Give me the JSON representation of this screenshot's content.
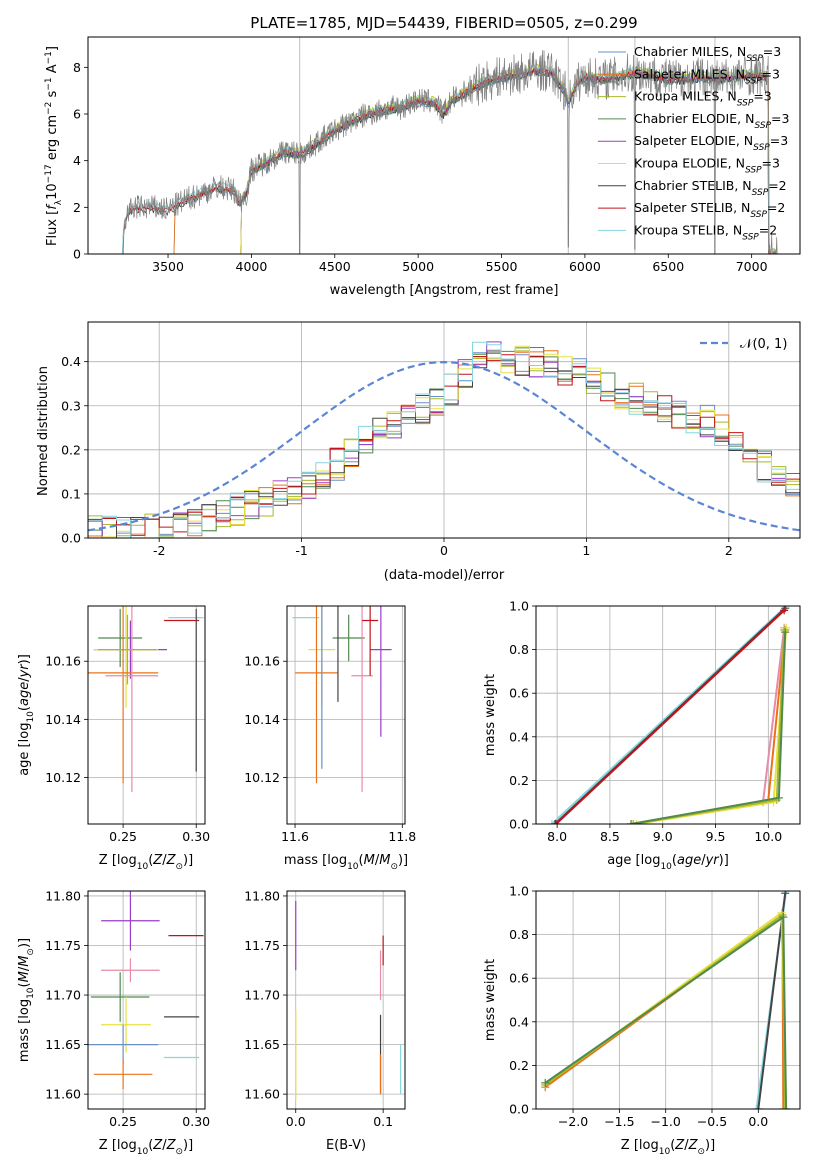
{
  "figure": {
    "title": "PLATE=1785, MJD=54439, FIBERID=0505, z=0.299"
  },
  "colors": {
    "Chabrier MILES": "#6a8fc8",
    "Salpeter MILES": "#e8731a",
    "Kroupa MILES": "#aab82a",
    "Chabrier ELODIE": "#4f8a4f",
    "Salpeter ELODIE": "#9a3ec8",
    "Kroupa ELODIE": "#e6e040",
    "Chabrier STELIB": "#444444",
    "Salpeter STELIB": "#c0151a",
    "Kroupa STELIB": "#86d6e0",
    "extra_pink": "#e88aa8",
    "gaussian": "#5b86d6",
    "data": "#808080"
  },
  "chart_data": [
    {
      "id": "spectrum",
      "type": "line",
      "title": "PLATE=1785, MJD=54439, FIBERID=0505, z=0.299",
      "xlabel": "wavelength [Angstrom, rest frame]",
      "ylabel_parts": [
        "Flux [",
        "f",
        "λ",
        "10",
        "−17",
        " erg cm",
        "−2",
        " s",
        "−1",
        " A",
        "−1",
        "]"
      ],
      "xlim": [
        3020,
        7290
      ],
      "ylim": [
        0,
        9.3
      ],
      "xticks": [
        3500,
        4000,
        4500,
        5000,
        5500,
        6000,
        6500,
        7000
      ],
      "yticks": [
        0,
        2,
        4,
        6,
        8
      ],
      "xgrid": [
        4290,
        5900,
        6300,
        6780
      ],
      "legend_position": "top-right",
      "legend": [
        {
          "label": "Chabrier MILES, N",
          "sub": "SSP",
          "tail": "=3"
        },
        {
          "label": "Salpeter MILES, N",
          "sub": "SSP",
          "tail": "=3"
        },
        {
          "label": "Kroupa MILES, N",
          "sub": "SSP",
          "tail": "=3"
        },
        {
          "label": "Chabrier ELODIE, N",
          "sub": "SSP",
          "tail": "=3"
        },
        {
          "label": "Salpeter ELODIE, N",
          "sub": "SSP",
          "tail": "=3"
        },
        {
          "label": "Kroupa ELODIE, N",
          "sub": "SSP",
          "tail": "=3"
        },
        {
          "label": "Chabrier STELIB, N",
          "sub": "SSP",
          "tail": "=2"
        },
        {
          "label": "Salpeter STELIB, N",
          "sub": "SSP",
          "tail": "=2"
        },
        {
          "label": "Kroupa STELIB, N",
          "sub": "SSP",
          "tail": "=2"
        }
      ],
      "model_curve": [
        [
          3220,
          0
        ],
        [
          3240,
          1.4
        ],
        [
          3260,
          1.8
        ],
        [
          3300,
          2.0
        ],
        [
          3400,
          2.0
        ],
        [
          3500,
          1.9
        ],
        [
          3600,
          2.3
        ],
        [
          3700,
          2.6
        ],
        [
          3800,
          2.9
        ],
        [
          3900,
          2.7
        ],
        [
          3930,
          2.2
        ],
        [
          3970,
          2.6
        ],
        [
          4000,
          3.6
        ],
        [
          4100,
          4.0
        ],
        [
          4200,
          4.4
        ],
        [
          4300,
          4.3
        ],
        [
          4400,
          4.8
        ],
        [
          4500,
          5.3
        ],
        [
          4600,
          5.7
        ],
        [
          4700,
          6.0
        ],
        [
          4800,
          6.2
        ],
        [
          4900,
          6.3
        ],
        [
          5000,
          6.6
        ],
        [
          5100,
          6.5
        ],
        [
          5150,
          6.0
        ],
        [
          5200,
          6.6
        ],
        [
          5300,
          7.0
        ],
        [
          5400,
          7.4
        ],
        [
          5500,
          7.6
        ],
        [
          5600,
          7.7
        ],
        [
          5700,
          7.9
        ],
        [
          5800,
          7.8
        ],
        [
          5880,
          7.0
        ],
        [
          5900,
          6.5
        ],
        [
          5950,
          7.3
        ],
        [
          6000,
          7.6
        ],
        [
          6100,
          7.5
        ],
        [
          6200,
          7.6
        ],
        [
          6300,
          7.8
        ],
        [
          6400,
          7.7
        ],
        [
          6500,
          7.5
        ],
        [
          6600,
          7.5
        ],
        [
          6700,
          7.6
        ],
        [
          6800,
          7.5
        ],
        [
          6900,
          7.6
        ],
        [
          7000,
          7.7
        ],
        [
          7100,
          7.6
        ]
      ]
    },
    {
      "id": "residuals",
      "type": "histogram",
      "xlabel": "(data-model)/error",
      "ylabel": "Normed distribution",
      "xlim": [
        -2.5,
        2.5
      ],
      "ylim": [
        0,
        0.49
      ],
      "xticks": [
        -2,
        -1,
        0,
        1,
        2
      ],
      "yticks": [
        0.0,
        0.1,
        0.2,
        0.3,
        0.4
      ],
      "legend": "𝒩(0, 1)",
      "legend_position": "top-right",
      "hist_envelope": [
        [
          -2.5,
          0.015
        ],
        [
          -2.0,
          0.02
        ],
        [
          -1.5,
          0.06
        ],
        [
          -1.0,
          0.11
        ],
        [
          -0.5,
          0.23
        ],
        [
          0.0,
          0.32
        ],
        [
          0.3,
          0.42
        ],
        [
          0.6,
          0.4
        ],
        [
          0.9,
          0.38
        ],
        [
          1.2,
          0.33
        ],
        [
          1.5,
          0.3
        ],
        [
          1.8,
          0.27
        ],
        [
          2.1,
          0.21
        ],
        [
          2.5,
          0.1
        ]
      ]
    },
    {
      "id": "age_vs_Z",
      "type": "errorbar",
      "xlabel": "Z [log10(Z/Z⊙)]",
      "ylabel": "age  [log10(age/yr)]",
      "xlim": [
        0.226,
        0.306
      ],
      "ylim": [
        10.104,
        10.179
      ],
      "xticks": [
        0.25,
        0.3
      ],
      "yticks": [
        10.12,
        10.14,
        10.16
      ],
      "points": [
        {
          "x": 0.248,
          "y": 10.168,
          "xerr": 0.015,
          "yerr": 0.01,
          "c": "Chabrier ELODIE"
        },
        {
          "x": 0.255,
          "y": 10.164,
          "xerr": 0.025,
          "yerr": 0.01,
          "c": "Salpeter ELODIE"
        },
        {
          "x": 0.252,
          "y": 10.164,
          "xerr": 0.022,
          "yerr": 0.02,
          "c": "Kroupa ELODIE"
        },
        {
          "x": 0.253,
          "y": 10.164,
          "xerr": 0.02,
          "yerr": 0.012,
          "c": "Kroupa MILES"
        },
        {
          "x": 0.25,
          "y": 10.156,
          "xerr": 0.024,
          "yerr": 0.038,
          "c": "Salpeter MILES"
        },
        {
          "x": 0.256,
          "y": 10.155,
          "xerr": 0.018,
          "yerr": 0.04,
          "c": "extra_pink"
        },
        {
          "x": 0.29,
          "y": 10.174,
          "xerr": 0.012,
          "yerr": 0.0,
          "c": "Salpeter STELIB"
        },
        {
          "x": 0.293,
          "y": 10.175,
          "xerr": 0.012,
          "yerr": 0.0,
          "c": "Kroupa STELIB"
        },
        {
          "x": 0.3,
          "y": 10.15,
          "xerr": 0.0,
          "yerr": 0.028,
          "c": "Chabrier STELIB"
        }
      ]
    },
    {
      "id": "age_vs_mass",
      "type": "errorbar",
      "xlabel": "mass [log10(M/M⊙)]",
      "ylim": [
        10.104,
        10.179
      ],
      "xlim": [
        11.585,
        11.805
      ],
      "xticks": [
        11.6,
        11.8
      ],
      "yticks": [
        10.12,
        10.14,
        10.16
      ],
      "points": [
        {
          "x": 11.62,
          "y": 10.175,
          "xerr": 0.025,
          "yerr": 0.0,
          "c": "Kroupa STELIB"
        },
        {
          "x": 11.7,
          "y": 10.168,
          "xerr": 0.03,
          "yerr": 0.008,
          "c": "Chabrier ELODIE"
        },
        {
          "x": 11.76,
          "y": 10.164,
          "xerr": 0.02,
          "yerr": 0.03,
          "c": "Salpeter ELODIE"
        },
        {
          "x": 11.65,
          "y": 10.164,
          "xerr": 0.025,
          "yerr": 0.02,
          "c": "Kroupa ELODIE"
        },
        {
          "x": 11.64,
          "y": 10.156,
          "xerr": 0.04,
          "yerr": 0.038,
          "c": "Salpeter MILES"
        },
        {
          "x": 11.65,
          "y": 10.158,
          "xerr": 0.0,
          "yerr": 0.035,
          "c": "Chabrier MILES"
        },
        {
          "x": 11.725,
          "y": 10.155,
          "xerr": 0.02,
          "yerr": 0.04,
          "c": "extra_pink"
        },
        {
          "x": 11.74,
          "y": 10.174,
          "xerr": 0.015,
          "yerr": 0.019,
          "c": "Salpeter STELIB"
        },
        {
          "x": 11.68,
          "y": 10.174,
          "xerr": 0.0,
          "yerr": 0.028,
          "c": "Chabrier STELIB"
        }
      ]
    },
    {
      "id": "weight_vs_age",
      "type": "line",
      "xlabel": "age  [log10(age/yr)]",
      "ylabel": "mass weight",
      "xlim": [
        7.8,
        10.3
      ],
      "ylim": [
        0,
        1
      ],
      "xticks": [
        8.0,
        8.5,
        9.0,
        9.5,
        10.0
      ],
      "yticks": [
        0.0,
        0.2,
        0.4,
        0.6,
        0.8,
        1.0
      ],
      "series": [
        {
          "c": "Kroupa STELIB",
          "x": [
            7.95,
            10.17
          ],
          "y": [
            0.0,
            1.0
          ]
        },
        {
          "c": "Chabrier STELIB",
          "x": [
            7.98,
            10.16
          ],
          "y": [
            0.0,
            0.99
          ]
        },
        {
          "c": "Salpeter STELIB",
          "x": [
            7.99,
            10.15
          ],
          "y": [
            0.0,
            0.98
          ]
        },
        {
          "c": "Salpeter MILES",
          "x": [
            8.7,
            10.0,
            10.16
          ],
          "y": [
            0.0,
            0.11,
            0.89
          ]
        },
        {
          "c": "extra_pink",
          "x": [
            8.72,
            9.95,
            10.15
          ],
          "y": [
            0.0,
            0.1,
            0.9
          ]
        },
        {
          "c": "Kroupa ELODIE",
          "x": [
            8.75,
            10.05,
            10.17
          ],
          "y": [
            0.0,
            0.1,
            0.9
          ]
        },
        {
          "c": "Kroupa MILES",
          "x": [
            8.72,
            10.08,
            10.15
          ],
          "y": [
            0.0,
            0.11,
            0.89
          ]
        },
        {
          "c": "Chabrier ELODIE",
          "x": [
            8.7,
            10.1,
            10.16
          ],
          "y": [
            0.0,
            0.12,
            0.88
          ]
        }
      ]
    },
    {
      "id": "mass_vs_Z",
      "type": "errorbar",
      "xlabel": "Z [log10(Z/Z⊙)]",
      "ylabel": "mass [log10(M/M⊙)]",
      "xlim": [
        0.226,
        0.306
      ],
      "ylim": [
        11.585,
        11.805
      ],
      "xticks": [
        0.25,
        0.3
      ],
      "yticks": [
        11.6,
        11.65,
        11.7,
        11.75,
        11.8
      ],
      "points": [
        {
          "x": 0.255,
          "y": 11.775,
          "xerr": 0.02,
          "yerr": 0.03,
          "c": "Salpeter ELODIE"
        },
        {
          "x": 0.255,
          "y": 11.725,
          "xerr": 0.02,
          "yerr": 0.012,
          "c": "extra_pink"
        },
        {
          "x": 0.248,
          "y": 11.698,
          "xerr": 0.02,
          "yerr": 0.025,
          "c": "Chabrier ELODIE"
        },
        {
          "x": 0.252,
          "y": 11.67,
          "xerr": 0.017,
          "yerr": 0.028,
          "c": "Kroupa ELODIE"
        },
        {
          "x": 0.25,
          "y": 11.65,
          "xerr": 0.024,
          "yerr": 0.02,
          "c": "Chabrier MILES"
        },
        {
          "x": 0.25,
          "y": 11.62,
          "xerr": 0.02,
          "yerr": 0.015,
          "c": "Salpeter MILES"
        },
        {
          "x": 0.293,
          "y": 11.76,
          "xerr": 0.012,
          "yerr": 0.0,
          "c": "Salpeter STELIB"
        },
        {
          "x": 0.29,
          "y": 11.678,
          "xerr": 0.012,
          "yerr": 0.0,
          "c": "Chabrier STELIB"
        },
        {
          "x": 0.29,
          "y": 11.637,
          "xerr": 0.012,
          "yerr": 0.0,
          "c": "Kroupa STELIB"
        }
      ]
    },
    {
      "id": "mass_vs_ebv",
      "type": "errorbar",
      "xlabel": "E(B-V)",
      "xlim": [
        -0.01,
        0.125
      ],
      "ylim": [
        11.585,
        11.805
      ],
      "xticks": [
        0.0,
        0.1
      ],
      "yticks": [
        11.6,
        11.65,
        11.7,
        11.75,
        11.8
      ],
      "points": [
        {
          "x": 0.0,
          "y": 11.76,
          "xerr": 0.0,
          "yerr": 0.035,
          "c": "Salpeter ELODIE"
        },
        {
          "x": 0.0,
          "y": 11.64,
          "xerr": 0.0,
          "yerr": 0.045,
          "c": "Kroupa ELODIE"
        },
        {
          "x": 0.1,
          "y": 11.745,
          "xerr": 0.0,
          "yerr": 0.015,
          "c": "Salpeter STELIB"
        },
        {
          "x": 0.097,
          "y": 11.72,
          "xerr": 0.0,
          "yerr": 0.025,
          "c": "extra_pink"
        },
        {
          "x": 0.097,
          "y": 11.64,
          "xerr": 0.0,
          "yerr": 0.04,
          "c": "Chabrier STELIB"
        },
        {
          "x": 0.097,
          "y": 11.62,
          "xerr": 0.0,
          "yerr": 0.02,
          "c": "Salpeter MILES"
        },
        {
          "x": 0.12,
          "y": 11.625,
          "xerr": 0.0,
          "yerr": 0.025,
          "c": "Kroupa STELIB"
        }
      ]
    },
    {
      "id": "weight_vs_Z",
      "type": "line",
      "xlabel": "Z [log10(Z/Z⊙)]",
      "ylabel": "mass weight",
      "xlim": [
        -2.4,
        0.45
      ],
      "ylim": [
        0,
        1
      ],
      "xticks": [
        -2.0,
        -1.5,
        -1.0,
        -0.5,
        0.0
      ],
      "yticks": [
        0.0,
        0.2,
        0.4,
        0.6,
        0.8,
        1.0
      ],
      "series": [
        {
          "c": "Kroupa STELIB",
          "x": [
            -0.02,
            0.3
          ],
          "y": [
            0.0,
            1.0
          ]
        },
        {
          "c": "Chabrier STELIB",
          "x": [
            0.0,
            0.29
          ],
          "y": [
            0.0,
            0.99
          ]
        },
        {
          "c": "Salpeter MILES",
          "x": [
            -2.3,
            0.26,
            0.27
          ],
          "y": [
            0.1,
            0.89,
            0.0
          ]
        },
        {
          "c": "Kroupa ELODIE",
          "x": [
            -2.3,
            0.25,
            0.3
          ],
          "y": [
            0.11,
            0.9,
            0.0
          ]
        },
        {
          "c": "Kroupa MILES",
          "x": [
            -2.3,
            0.26,
            0.29
          ],
          "y": [
            0.11,
            0.89,
            0.0
          ]
        },
        {
          "c": "Chabrier ELODIE",
          "x": [
            -2.3,
            0.27,
            0.3
          ],
          "y": [
            0.12,
            0.88,
            0.0
          ]
        }
      ]
    }
  ]
}
